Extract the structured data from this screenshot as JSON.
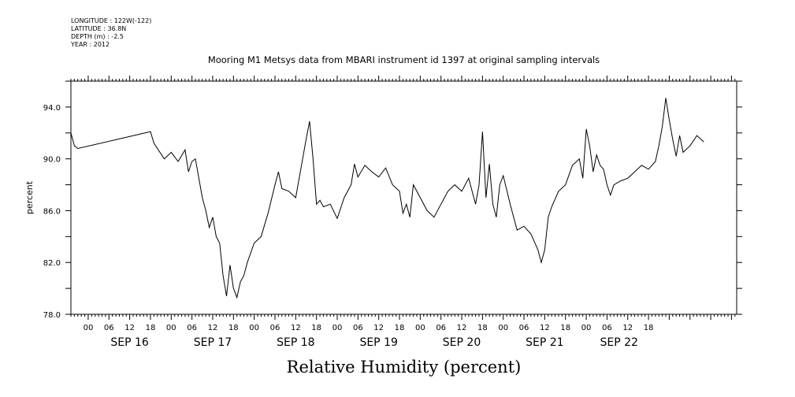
{
  "header": {
    "longitude": "LONGITUDE : 122W(-122)",
    "latitude": "LATITUDE : 36.8N",
    "depth": "DEPTH (m) : -2.5",
    "year": "YEAR : 2012"
  },
  "chart_data": {
    "type": "line",
    "title": "Mooring M1 Metsys data from MBARI instrument id 1397 at original sampling intervals",
    "xlabel": "Relative Humidity (percent)",
    "ylabel": "percent",
    "x_range_hours": [
      -5,
      19.5
    ],
    "ylim": [
      78.0,
      96.0
    ],
    "y_ticks": [
      "78.0",
      "82.0",
      "86.0",
      "90.0",
      "94.0"
    ],
    "y_tick_values": [
      78,
      82,
      86,
      90,
      94
    ],
    "hour_tick_labels": [
      "00",
      "06",
      "12",
      "18",
      "00",
      "06",
      "12",
      "18",
      "00",
      "06",
      "12",
      "18",
      "00",
      "06",
      "12",
      "18",
      "00",
      "06",
      "12",
      "18",
      "00",
      "06",
      "12",
      "18",
      "00",
      "06",
      "12",
      "18"
    ],
    "day_labels": [
      "SEP 16",
      "SEP 17",
      "SEP 18",
      "SEP 19",
      "SEP 20",
      "SEP 21",
      "SEP 22"
    ],
    "grid": false,
    "series": [
      {
        "points": [
          [
            "Sep 15 19:00",
            92.0
          ],
          [
            "Sep 15 20:00",
            91.0
          ],
          [
            "Sep 15 21:00",
            90.8
          ],
          [
            "Sep 16 18:00",
            92.1
          ],
          [
            "Sep 16 19:00",
            91.2
          ],
          [
            "Sep 16 22:00",
            90.0
          ],
          [
            "Sep 17 00:00",
            90.5
          ],
          [
            "Sep 17 02:00",
            89.8
          ],
          [
            "Sep 17 04:00",
            90.7
          ],
          [
            "Sep 17 05:00",
            89.0
          ],
          [
            "Sep 17 06:00",
            89.8
          ],
          [
            "Sep 17 07:00",
            90.0
          ],
          [
            "Sep 17 08:00",
            88.5
          ],
          [
            "Sep 17 09:00",
            87.0
          ],
          [
            "Sep 17 10:00",
            86.0
          ],
          [
            "Sep 17 11:00",
            84.7
          ],
          [
            "Sep 17 12:00",
            85.5
          ],
          [
            "Sep 17 13:00",
            84.0
          ],
          [
            "Sep 17 14:00",
            83.5
          ],
          [
            "Sep 17 15:00",
            81.0
          ],
          [
            "Sep 17 16:00",
            79.4
          ],
          [
            "Sep 17 17:00",
            81.8
          ],
          [
            "Sep 17 18:00",
            80.0
          ],
          [
            "Sep 17 19:00",
            79.3
          ],
          [
            "Sep 17 20:00",
            80.5
          ],
          [
            "Sep 17 21:00",
            81.0
          ],
          [
            "Sep 17 22:00",
            82.0
          ],
          [
            "Sep 18 00:00",
            83.5
          ],
          [
            "Sep 18 02:00",
            84.0
          ],
          [
            "Sep 18 04:00",
            85.8
          ],
          [
            "Sep 18 06:00",
            88.0
          ],
          [
            "Sep 18 07:00",
            89.0
          ],
          [
            "Sep 18 08:00",
            87.7
          ],
          [
            "Sep 18 10:00",
            87.5
          ],
          [
            "Sep 18 12:00",
            87.0
          ],
          [
            "Sep 18 13:00",
            88.5
          ],
          [
            "Sep 18 14:00",
            90.0
          ],
          [
            "Sep 18 15:00",
            91.5
          ],
          [
            "Sep 18 16:00",
            92.9
          ],
          [
            "Sep 18 17:00",
            90.0
          ],
          [
            "Sep 18 18:00",
            86.5
          ],
          [
            "Sep 18 19:00",
            86.8
          ],
          [
            "Sep 18 20:00",
            86.3
          ],
          [
            "Sep 18 22:00",
            86.5
          ],
          [
            "Sep 19 00:00",
            85.4
          ],
          [
            "Sep 19 02:00",
            87.0
          ],
          [
            "Sep 19 04:00",
            88.0
          ],
          [
            "Sep 19 05:00",
            89.6
          ],
          [
            "Sep 19 06:00",
            88.6
          ],
          [
            "Sep 19 08:00",
            89.5
          ],
          [
            "Sep 19 10:00",
            89.0
          ],
          [
            "Sep 19 12:00",
            88.6
          ],
          [
            "Sep 19 14:00",
            89.3
          ],
          [
            "Sep 19 16:00",
            88.0
          ],
          [
            "Sep 19 18:00",
            87.5
          ],
          [
            "Sep 19 19:00",
            85.8
          ],
          [
            "Sep 19 20:00",
            86.5
          ],
          [
            "Sep 19 21:00",
            85.5
          ],
          [
            "Sep 19 22:00",
            88.0
          ],
          [
            "Sep 20 00:00",
            87.0
          ],
          [
            "Sep 20 02:00",
            86.0
          ],
          [
            "Sep 20 04:00",
            85.5
          ],
          [
            "Sep 20 06:00",
            86.5
          ],
          [
            "Sep 20 08:00",
            87.5
          ],
          [
            "Sep 20 10:00",
            88.0
          ],
          [
            "Sep 20 12:00",
            87.5
          ],
          [
            "Sep 20 14:00",
            88.5
          ],
          [
            "Sep 20 16:00",
            86.5
          ],
          [
            "Sep 20 17:00",
            88.0
          ],
          [
            "Sep 20 18:00",
            92.1
          ],
          [
            "Sep 20 19:00",
            87.0
          ],
          [
            "Sep 20 20:00",
            89.6
          ],
          [
            "Sep 20 21:00",
            86.5
          ],
          [
            "Sep 20 22:00",
            85.5
          ],
          [
            "Sep 20 23:00",
            88.0
          ],
          [
            "Sep 21 00:00",
            88.7
          ],
          [
            "Sep 21 02:00",
            86.5
          ],
          [
            "Sep 21 04:00",
            84.5
          ],
          [
            "Sep 21 06:00",
            84.8
          ],
          [
            "Sep 21 08:00",
            84.2
          ],
          [
            "Sep 21 10:00",
            83.0
          ],
          [
            "Sep 21 11:00",
            82.0
          ],
          [
            "Sep 21 12:00",
            83.0
          ],
          [
            "Sep 21 13:00",
            85.5
          ],
          [
            "Sep 21 14:00",
            86.3
          ],
          [
            "Sep 21 16:00",
            87.5
          ],
          [
            "Sep 21 18:00",
            88.0
          ],
          [
            "Sep 21 20:00",
            89.5
          ],
          [
            "Sep 21 22:00",
            90.0
          ],
          [
            "Sep 21 23:00",
            88.5
          ],
          [
            "Sep 22 00:00",
            92.3
          ],
          [
            "Sep 22 01:00",
            91.0
          ],
          [
            "Sep 22 02:00",
            89.0
          ],
          [
            "Sep 22 03:00",
            90.3
          ],
          [
            "Sep 22 04:00",
            89.5
          ],
          [
            "Sep 22 05:00",
            89.2
          ],
          [
            "Sep 22 06:00",
            88.0
          ],
          [
            "Sep 22 07:00",
            87.2
          ],
          [
            "Sep 22 08:00",
            88.0
          ],
          [
            "Sep 22 10:00",
            88.3
          ],
          [
            "Sep 22 12:00",
            88.5
          ],
          [
            "Sep 22 14:00",
            89.0
          ],
          [
            "Sep 22 16:00",
            89.5
          ],
          [
            "Sep 22 18:00",
            89.2
          ],
          [
            "Sep 22 20:00",
            89.8
          ],
          [
            "Sep 22 21:00",
            91.0
          ],
          [
            "Sep 22 22:00",
            92.5
          ],
          [
            "Sep 22 23:00",
            94.7
          ],
          [
            "Sep 23 00:00",
            93.0
          ],
          [
            "Sep 23 01:00",
            91.5
          ],
          [
            "Sep 23 02:00",
            90.2
          ],
          [
            "Sep 23 03:00",
            91.8
          ],
          [
            "Sep 23 04:00",
            90.5
          ],
          [
            "Sep 23 06:00",
            91.0
          ],
          [
            "Sep 23 08:00",
            91.8
          ],
          [
            "Sep 23 10:00",
            91.3
          ]
        ]
      }
    ]
  }
}
